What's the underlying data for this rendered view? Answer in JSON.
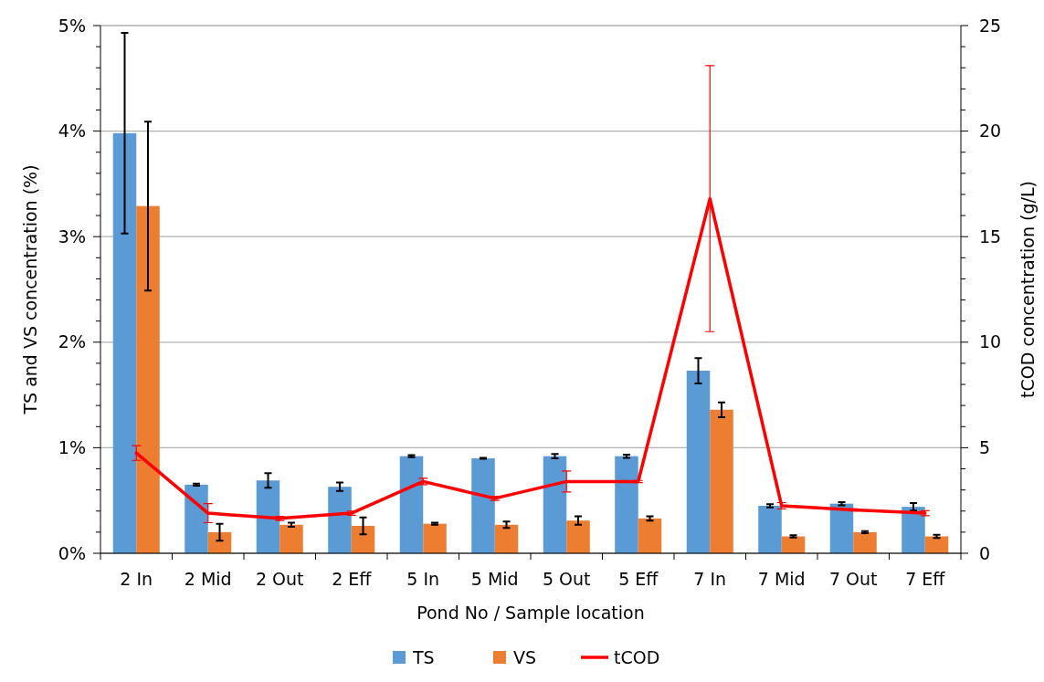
{
  "chart_data": {
    "type": "bar",
    "xlabel": "Pond No / Sample location",
    "ylabel": "TS and VS concentration (%)",
    "y2label": "tCOD concentration (g/L)",
    "categories": [
      "2 In",
      "2 Mid",
      "2 Out",
      "2 Eff",
      "5 In",
      "5 Mid",
      "5 Out",
      "5 Eff",
      "7 In",
      "7 Mid",
      "7 Out",
      "7 Eff"
    ],
    "series": [
      {
        "name": "TS",
        "color": "#5b9bd5",
        "values": [
          3.98,
          0.65,
          0.69,
          0.63,
          0.92,
          0.9,
          0.92,
          0.92,
          1.73,
          0.45,
          0.47,
          0.44
        ],
        "errors": [
          0.95,
          0.01,
          0.07,
          0.04,
          0.01,
          0.005,
          0.02,
          0.015,
          0.12,
          0.015,
          0.015,
          0.035
        ]
      },
      {
        "name": "VS",
        "color": "#ed7d31",
        "values": [
          3.29,
          0.2,
          0.27,
          0.26,
          0.28,
          0.27,
          0.31,
          0.33,
          1.36,
          0.16,
          0.2,
          0.16
        ],
        "errors": [
          0.8,
          0.08,
          0.02,
          0.08,
          0.01,
          0.03,
          0.04,
          0.02,
          0.07,
          0.01,
          0.01,
          0.015
        ]
      },
      {
        "name": "tCOD",
        "type": "line",
        "axis": "y2",
        "color": "#ff0000",
        "values": [
          4.75,
          1.9,
          1.65,
          1.9,
          3.4,
          2.6,
          3.4,
          3.4,
          16.8,
          2.25,
          2.05,
          1.9
        ],
        "errors": [
          0.35,
          0.45,
          0.1,
          0.1,
          0.15,
          0.1,
          0.5,
          0.05,
          6.3,
          0.15,
          0.05,
          0.12
        ]
      }
    ],
    "ylim": [
      0,
      5
    ],
    "yticks": [
      {
        "value": 0,
        "label": "0%"
      },
      {
        "value": 0.2,
        "label": null
      },
      {
        "value": 0.4,
        "label": null
      },
      {
        "value": 0.6,
        "label": null
      },
      {
        "value": 0.8,
        "label": null
      },
      {
        "value": 1,
        "label": "1%"
      },
      {
        "value": 1.2,
        "label": null
      },
      {
        "value": 1.4,
        "label": null
      },
      {
        "value": 1.6,
        "label": null
      },
      {
        "value": 1.8,
        "label": null
      },
      {
        "value": 2,
        "label": "2%"
      },
      {
        "value": 2.2,
        "label": null
      },
      {
        "value": 2.4,
        "label": null
      },
      {
        "value": 2.6,
        "label": null
      },
      {
        "value": 2.8,
        "label": null
      },
      {
        "value": 3,
        "label": "3%"
      },
      {
        "value": 3.2,
        "label": null
      },
      {
        "value": 3.4,
        "label": null
      },
      {
        "value": 3.6,
        "label": null
      },
      {
        "value": 3.8,
        "label": null
      },
      {
        "value": 4,
        "label": "4%"
      },
      {
        "value": 4.2,
        "label": null
      },
      {
        "value": 4.4,
        "label": null
      },
      {
        "value": 4.6,
        "label": null
      },
      {
        "value": 4.8,
        "label": null
      },
      {
        "value": 5,
        "label": "5%"
      }
    ],
    "y2lim": [
      0,
      25
    ],
    "y2ticks": [
      0,
      {
        "value": 1,
        "label": null
      },
      {
        "value": 2,
        "label": null
      },
      {
        "value": 3,
        "label": null
      },
      {
        "value": 4,
        "label": null
      },
      5,
      {
        "value": 6,
        "label": null
      },
      {
        "value": 7,
        "label": null
      },
      {
        "value": 8,
        "label": null
      },
      {
        "value": 9,
        "label": null
      },
      10,
      {
        "value": 11,
        "label": null
      },
      {
        "value": 12,
        "label": null
      },
      {
        "value": 13,
        "label": null
      },
      {
        "value": 14,
        "label": null
      },
      15,
      {
        "value": 16,
        "label": null
      },
      {
        "value": 17,
        "label": null
      },
      {
        "value": 18,
        "label": null
      },
      {
        "value": 19,
        "label": null
      },
      20,
      {
        "value": 21,
        "label": null
      },
      {
        "value": 22,
        "label": null
      },
      {
        "value": 23,
        "label": null
      },
      {
        "value": 24,
        "label": null
      },
      25
    ],
    "grid": "y",
    "legend": "bottom",
    "marker": "none",
    "line_style": "solid"
  }
}
